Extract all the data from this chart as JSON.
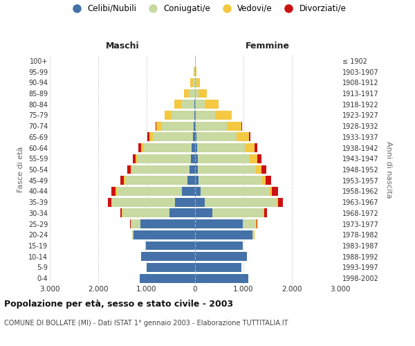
{
  "age_groups": [
    "0-4",
    "5-9",
    "10-14",
    "15-19",
    "20-24",
    "25-29",
    "30-34",
    "35-39",
    "40-44",
    "45-49",
    "50-54",
    "55-59",
    "60-64",
    "65-69",
    "70-74",
    "75-79",
    "80-84",
    "85-89",
    "90-94",
    "95-99",
    "100+"
  ],
  "birth_years": [
    "1998-2002",
    "1993-1997",
    "1988-1992",
    "1983-1987",
    "1978-1982",
    "1973-1977",
    "1968-1972",
    "1963-1967",
    "1958-1962",
    "1953-1957",
    "1948-1952",
    "1943-1947",
    "1938-1942",
    "1933-1937",
    "1928-1932",
    "1923-1927",
    "1918-1922",
    "1913-1917",
    "1908-1912",
    "1903-1907",
    "≤ 1902"
  ],
  "maschi": {
    "celibi": [
      1150,
      1000,
      1110,
      1020,
      1270,
      1130,
      530,
      410,
      270,
      160,
      120,
      90,
      70,
      50,
      30,
      15,
      10,
      5,
      3,
      1,
      0
    ],
    "coniugati": [
      0,
      0,
      0,
      5,
      30,
      200,
      970,
      1300,
      1350,
      1280,
      1180,
      1090,
      990,
      820,
      660,
      470,
      270,
      120,
      40,
      10,
      2
    ],
    "vedovi": [
      0,
      0,
      0,
      0,
      0,
      5,
      10,
      15,
      20,
      25,
      35,
      50,
      60,
      80,
      110,
      140,
      150,
      100,
      50,
      15,
      3
    ],
    "divorziati": [
      0,
      0,
      0,
      0,
      5,
      15,
      30,
      80,
      90,
      80,
      70,
      55,
      45,
      30,
      15,
      8,
      3,
      2,
      1,
      0,
      0
    ]
  },
  "femmine": {
    "nubili": [
      1100,
      960,
      1070,
      980,
      1180,
      980,
      350,
      200,
      110,
      70,
      60,
      50,
      40,
      30,
      20,
      10,
      5,
      3,
      2,
      1,
      0
    ],
    "coniugate": [
      0,
      0,
      0,
      5,
      40,
      280,
      1050,
      1480,
      1420,
      1310,
      1200,
      1080,
      990,
      830,
      640,
      400,
      200,
      75,
      20,
      5,
      1
    ],
    "vedove": [
      0,
      0,
      0,
      0,
      3,
      10,
      30,
      40,
      60,
      80,
      110,
      160,
      200,
      250,
      300,
      340,
      280,
      170,
      80,
      25,
      8
    ],
    "divorziate": [
      0,
      0,
      0,
      0,
      5,
      20,
      50,
      100,
      120,
      110,
      100,
      75,
      55,
      30,
      15,
      5,
      2,
      1,
      0,
      0,
      0
    ]
  },
  "colors": {
    "celibi_nubili": "#4472a8",
    "coniugati": "#c8d9a2",
    "vedovi": "#f5c842",
    "divorziati": "#cc1111"
  },
  "xlim": 3000,
  "title": "Popolazione per età, sesso e stato civile - 2003",
  "subtitle": "COMUNE DI BOLLATE (MI) - Dati ISTAT 1° gennaio 2003 - Elaborazione TUTTITALIA.IT",
  "ylabel_left": "Fasce di età",
  "ylabel_right": "Anni di nascita",
  "xlabel_maschi": "Maschi",
  "xlabel_femmine": "Femmine",
  "legend_labels": [
    "Celibi/Nubili",
    "Coniugati/e",
    "Vedovi/e",
    "Divorziati/e"
  ],
  "bg_color": "#ffffff",
  "grid_color": "#d0d0d0"
}
